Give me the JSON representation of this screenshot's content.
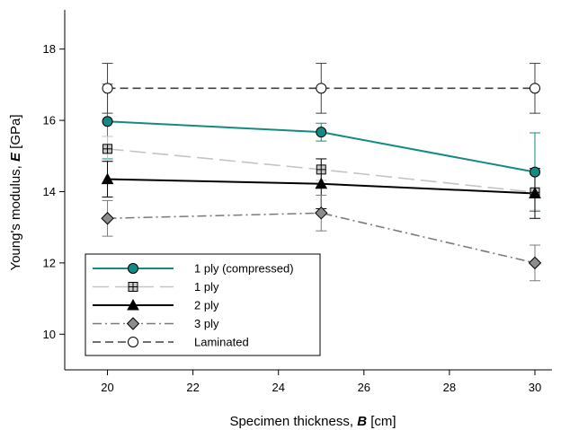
{
  "chart_data": {
    "type": "line",
    "xlabel": {
      "prefix": "Specimen thickness, ",
      "symbol": "B",
      "unit": " [cm]"
    },
    "ylabel": {
      "prefix": "Young's modulus, ",
      "symbol": "E",
      "unit": " [GPa]"
    },
    "xlim": [
      19,
      30.4
    ],
    "ylim": [
      9,
      19.1
    ],
    "x_ticks": [
      20,
      22,
      24,
      26,
      28,
      30
    ],
    "y_ticks": [
      10,
      12,
      14,
      16,
      18
    ],
    "grid": false,
    "legend_position": "bottom-left",
    "x": [
      20,
      25,
      30
    ],
    "series": [
      {
        "name": "1 ply (compressed)",
        "values": [
          15.97,
          15.67,
          14.55
        ],
        "errors": [
          1.05,
          0.25,
          1.1
        ],
        "color": "#138a83",
        "line_style": "solid",
        "marker": "circle",
        "marker_fill": "#138a83"
      },
      {
        "name": "1 ply",
        "values": [
          15.2,
          14.62,
          13.98
        ],
        "errors": [
          0.35,
          0.3,
          0.5
        ],
        "color": "#c4c4c4",
        "line_style": "long-dash",
        "marker": "square-cross",
        "marker_fill": "#c8c8c8"
      },
      {
        "name": "2 ply",
        "values": [
          14.35,
          14.22,
          13.95
        ],
        "errors": [
          0.5,
          0.7,
          0.7
        ],
        "color": "#000000",
        "line_style": "solid",
        "marker": "triangle",
        "marker_fill": "#000000"
      },
      {
        "name": "3 ply",
        "values": [
          13.25,
          13.4,
          12.0
        ],
        "errors": [
          0.5,
          0.5,
          0.5
        ],
        "color": "#7a7a7a",
        "line_style": "dash-dot",
        "marker": "diamond",
        "marker_fill": "#8c8c8c"
      },
      {
        "name": "Laminated",
        "values": [
          16.9,
          16.9,
          16.9
        ],
        "errors": [
          0.7,
          0.7,
          0.7
        ],
        "color": "#404040",
        "line_style": "dashed",
        "marker": "circle",
        "marker_fill": "#ffffff"
      }
    ]
  }
}
